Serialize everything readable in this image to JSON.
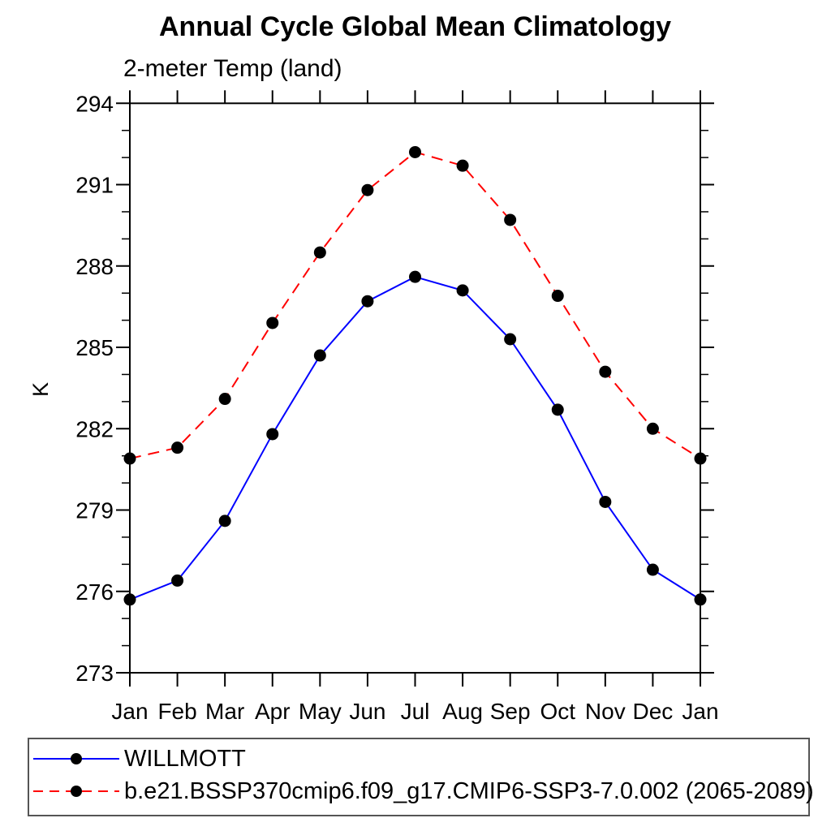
{
  "chart_data": {
    "type": "line",
    "title": "Annual Cycle Global Mean Climatology",
    "subtitle": "2-meter Temp (land)",
    "ylabel": "K",
    "x_categories": [
      "Jan",
      "Feb",
      "Mar",
      "Apr",
      "May",
      "Jun",
      "Jul",
      "Aug",
      "Sep",
      "Oct",
      "Nov",
      "Dec",
      "Jan"
    ],
    "ylim": [
      273,
      294
    ],
    "ytick_major_step": 3,
    "ytick_minor_step": 1,
    "ytick_labels": [
      "273",
      "276",
      "279",
      "282",
      "285",
      "288",
      "291",
      "294"
    ],
    "grid": false,
    "legend_position": "bottom-left",
    "axis_color": "#000000",
    "series": [
      {
        "name": "WILLMOTT",
        "color": "#0000ff",
        "line_style": "solid",
        "marker": "filled-circle",
        "marker_color": "#000000",
        "values": [
          275.7,
          276.4,
          278.6,
          281.8,
          284.7,
          286.7,
          287.6,
          287.1,
          285.3,
          282.7,
          279.3,
          276.8,
          275.7
        ]
      },
      {
        "name": "b.e21.BSSP370cmip6.f09_g17.CMIP6-SSP3-7.0.002 (2065-2089)",
        "color": "#ff0000",
        "line_style": "dashed",
        "marker": "filled-circle",
        "marker_color": "#000000",
        "values": [
          280.9,
          281.3,
          283.1,
          285.9,
          288.5,
          290.8,
          292.2,
          291.7,
          289.7,
          286.9,
          284.1,
          282.0,
          280.9
        ]
      }
    ]
  }
}
